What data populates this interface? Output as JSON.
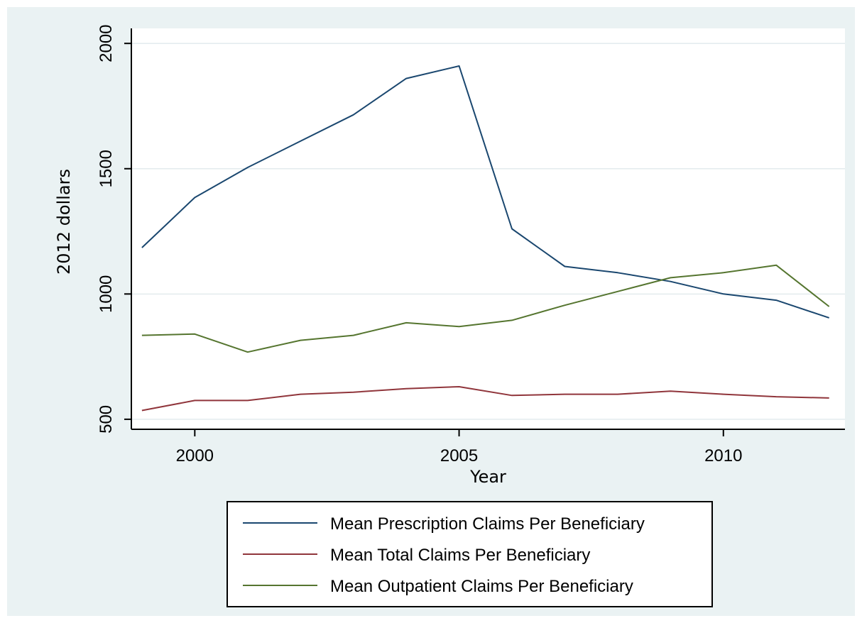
{
  "chart_data": {
    "type": "line",
    "title": "",
    "xlabel": "Year",
    "ylabel": "2012 dollars",
    "x": [
      1999,
      2000,
      2001,
      2002,
      2003,
      2004,
      2005,
      2006,
      2007,
      2008,
      2009,
      2010,
      2011,
      2012
    ],
    "xlim": [
      1998.8,
      2012.3
    ],
    "ylim": [
      460,
      2060
    ],
    "xticks": [
      2000,
      2005,
      2010
    ],
    "yticks": [
      500,
      1000,
      1500,
      2000
    ],
    "xtick_labels": [
      "2000",
      "2005",
      "2010"
    ],
    "ytick_labels": [
      "500",
      "1000",
      "1500",
      "2000"
    ],
    "grid": "horizontal",
    "legend_position": "bottom",
    "series": [
      {
        "name": "Mean Prescription Claims Per Beneficiary",
        "color": "#1a476f",
        "values": [
          1185,
          1385,
          1505,
          1610,
          1715,
          1860,
          1910,
          1260,
          1110,
          1085,
          1050,
          1000,
          975,
          905
        ]
      },
      {
        "name": "Mean Total Claims Per Beneficiary",
        "color": "#90353b",
        "values": [
          535,
          575,
          575,
          600,
          608,
          622,
          630,
          595,
          600,
          600,
          612,
          600,
          590,
          585
        ]
      },
      {
        "name": "Mean Outpatient Claims Per Beneficiary",
        "color": "#55752f",
        "values": [
          835,
          840,
          768,
          815,
          835,
          885,
          870,
          895,
          955,
          1010,
          1065,
          1085,
          1115,
          950
        ]
      }
    ]
  }
}
